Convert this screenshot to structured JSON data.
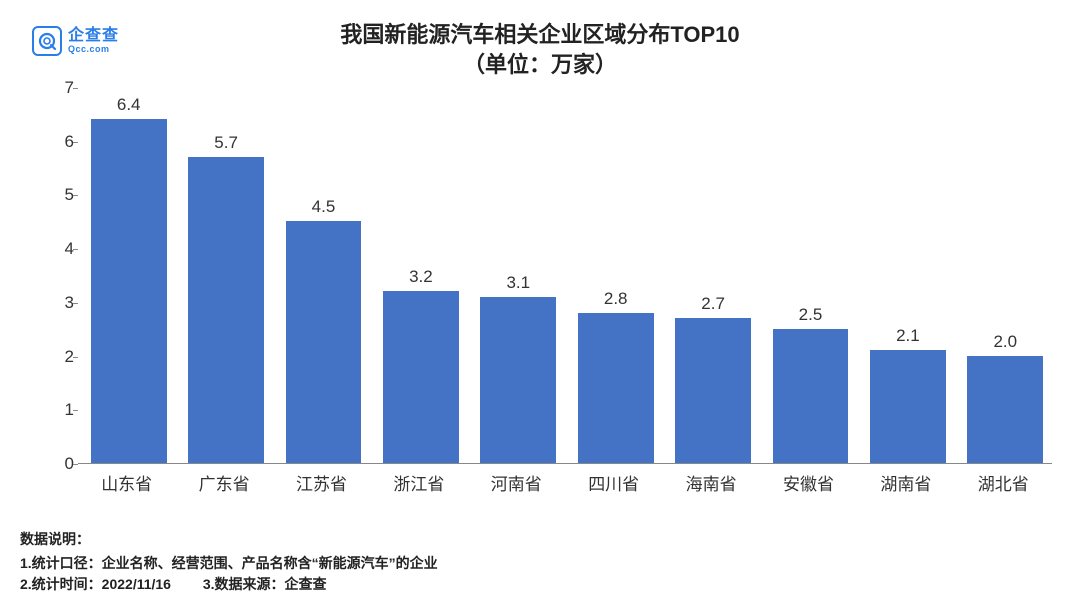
{
  "logo": {
    "cn": "企查查",
    "en": "Qcc.com",
    "color": "#2a7ee8"
  },
  "title": {
    "line1": "我国新能源汽车相关企业区域分布TOP10",
    "line2": "（单位：万家）",
    "fontsize": 22,
    "color": "#222222"
  },
  "chart": {
    "type": "bar",
    "categories": [
      "山东省",
      "广东省",
      "江苏省",
      "浙江省",
      "河南省",
      "四川省",
      "海南省",
      "安徽省",
      "湖南省",
      "湖北省"
    ],
    "values": [
      6.4,
      5.7,
      4.5,
      3.2,
      3.1,
      2.8,
      2.7,
      2.5,
      2.1,
      2.0
    ],
    "bar_color": "#4472c4",
    "ylim": [
      0,
      7
    ],
    "ytick_step": 1,
    "bar_width_ratio": 0.78,
    "label_fontsize": 17,
    "tick_fontsize": 17,
    "value_label_fontsize": 17,
    "axis_color": "#888888",
    "text_color": "#333333",
    "background_color": "#ffffff"
  },
  "notes": {
    "header": "数据说明：",
    "line1": "1.统计口径：企业名称、经营范围、产品名称含“新能源汽车”的企业",
    "line2a": "2.统计时间：2022/11/16",
    "line2b": "3.数据来源：企查查",
    "fontsize": 14,
    "color": "#222222"
  }
}
